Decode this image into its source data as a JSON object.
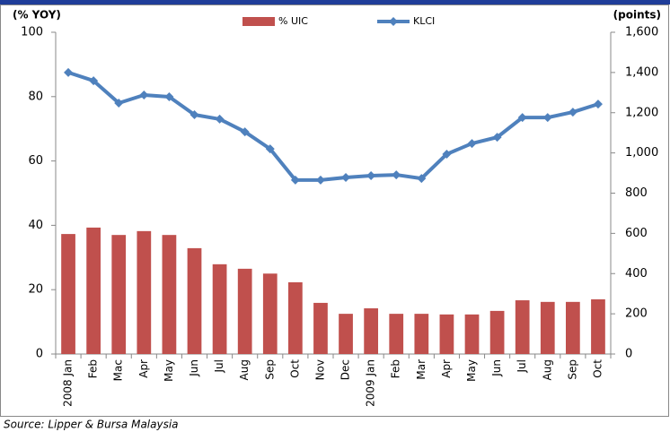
{
  "chart_data": {
    "type": "bar-line",
    "y_label": "(% YOY)",
    "y2_label": "(points)",
    "source": "Source: Lipper & Bursa Malaysia",
    "categories": [
      "2008 Jan",
      "Feb",
      "Mac",
      "Apr",
      "May",
      "Jun",
      "Jul",
      "Aug",
      "Sep",
      "Oct",
      "Nov",
      "Dec",
      "2009 Jan",
      "Feb",
      "Mar",
      "Apr",
      "May",
      "Jun",
      "Jul",
      "Aug",
      "Sep",
      "Oct"
    ],
    "series": [
      {
        "name": "% UIC",
        "type": "bar",
        "color": "#c0504d",
        "values": [
          37.3,
          39.3,
          37,
          38.2,
          37,
          32.9,
          27.9,
          26.5,
          25,
          22.3,
          15.9,
          12.5,
          14.2,
          12.5,
          12.5,
          12.3,
          12.3,
          13.4,
          16.7,
          16.2,
          16.2,
          17
        ]
      },
      {
        "name": "KLCI",
        "type": "line",
        "axis": "y2",
        "color": "#4f81bd",
        "values": [
          1400,
          1359,
          1248,
          1288,
          1279,
          1190,
          1168,
          1105,
          1020,
          865,
          865,
          878,
          887,
          891,
          873,
          994,
          1047,
          1078,
          1176,
          1176,
          1203,
          1243
        ]
      }
    ],
    "ylim": [
      0,
      100
    ],
    "yticks": [
      0,
      20,
      40,
      60,
      80,
      100
    ],
    "y2lim": [
      0,
      1600
    ],
    "y2ticks": [
      0,
      200,
      400,
      600,
      800,
      {
        "value": 1000,
        "label": "1,000"
      },
      {
        "value": 1200,
        "label": "1,200"
      },
      {
        "value": 1400,
        "label": "1,400"
      },
      {
        "value": 1600,
        "label": "1,600"
      }
    ]
  }
}
